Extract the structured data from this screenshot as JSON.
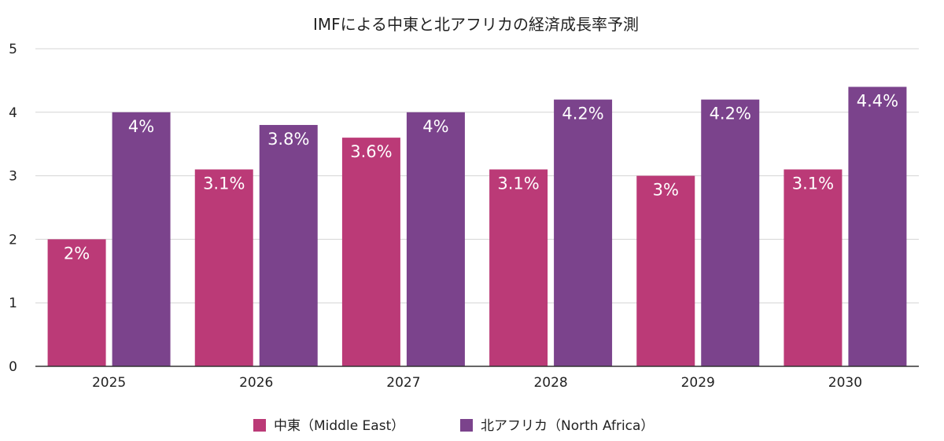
{
  "chart_data": {
    "type": "bar",
    "title": "IMFによる中東と北アフリカの経済成長率予測",
    "categories": [
      "2025",
      "2026",
      "2027",
      "2028",
      "2029",
      "2030"
    ],
    "series": [
      {
        "name": "中東（Middle East）",
        "color": "#bb3a77",
        "values": [
          2,
          3.1,
          3.6,
          3.1,
          3,
          3.1
        ],
        "labels": [
          "2%",
          "3.1%",
          "3.6%",
          "3.1%",
          "3%",
          "3.1%"
        ]
      },
      {
        "name": "北アフリカ（North Africa）",
        "color": "#7b438c",
        "values": [
          4,
          3.8,
          4,
          4.2,
          4.2,
          4.4
        ],
        "labels": [
          "4%",
          "3.8%",
          "4%",
          "4.2%",
          "4.2%",
          "4.4%"
        ]
      }
    ],
    "ylim": [
      0,
      5
    ],
    "yticks": [
      "0",
      "1",
      "2",
      "3",
      "4",
      "5"
    ],
    "grid": true,
    "legend_position": "bottom"
  }
}
